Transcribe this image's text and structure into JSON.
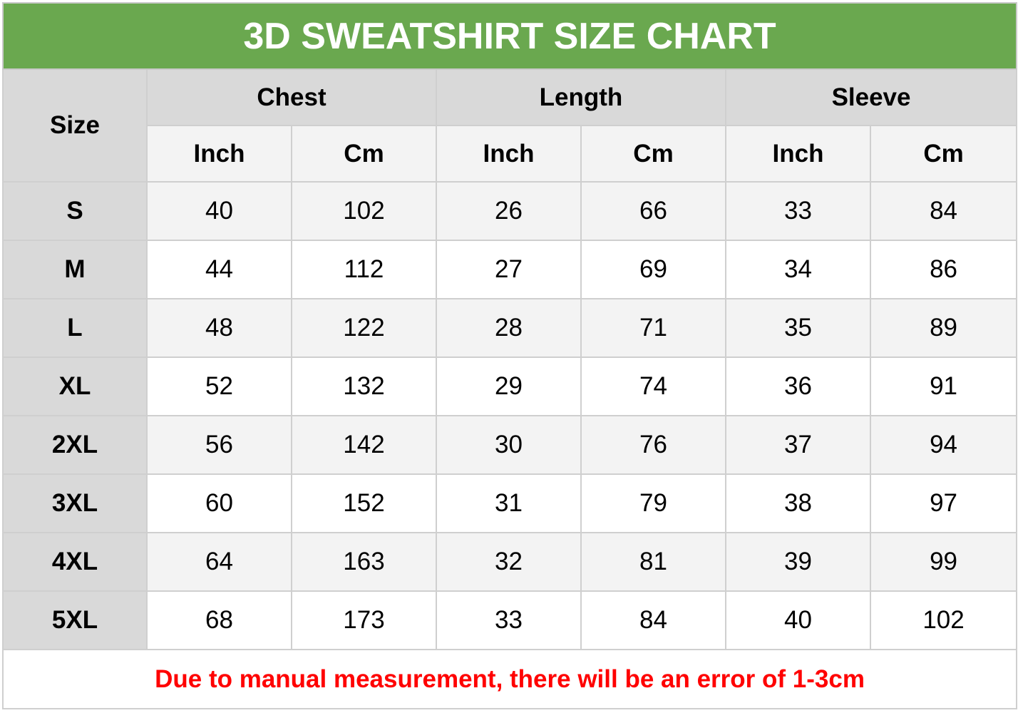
{
  "title": "3D SWEATSHIRT SIZE CHART",
  "header": {
    "size": "Size",
    "groups": [
      "Chest",
      "Length",
      "Sleeve"
    ],
    "units": [
      "Inch",
      "Cm",
      "Inch",
      "Cm",
      "Inch",
      "Cm"
    ]
  },
  "rows": [
    {
      "size": "S",
      "values": [
        "40",
        "102",
        "26",
        "66",
        "33",
        "84"
      ]
    },
    {
      "size": "M",
      "values": [
        "44",
        "112",
        "27",
        "69",
        "34",
        "86"
      ]
    },
    {
      "size": "L",
      "values": [
        "48",
        "122",
        "28",
        "71",
        "35",
        "89"
      ]
    },
    {
      "size": "XL",
      "values": [
        "52",
        "132",
        "29",
        "74",
        "36",
        "91"
      ]
    },
    {
      "size": "2XL",
      "values": [
        "56",
        "142",
        "30",
        "76",
        "37",
        "94"
      ]
    },
    {
      "size": "3XL",
      "values": [
        "60",
        "152",
        "31",
        "79",
        "38",
        "97"
      ]
    },
    {
      "size": "4XL",
      "values": [
        "64",
        "163",
        "32",
        "81",
        "39",
        "99"
      ]
    },
    {
      "size": "5XL",
      "values": [
        "68",
        "173",
        "33",
        "84",
        "40",
        "102"
      ]
    }
  ],
  "note": "Due to manual measurement, there will be an error of 1-3cm",
  "colors": {
    "title_bg": "#6aa84f",
    "note_text": "#ff0000",
    "header_bg": "#d9d9d9",
    "alt_row_bg": "#f3f3f3"
  }
}
